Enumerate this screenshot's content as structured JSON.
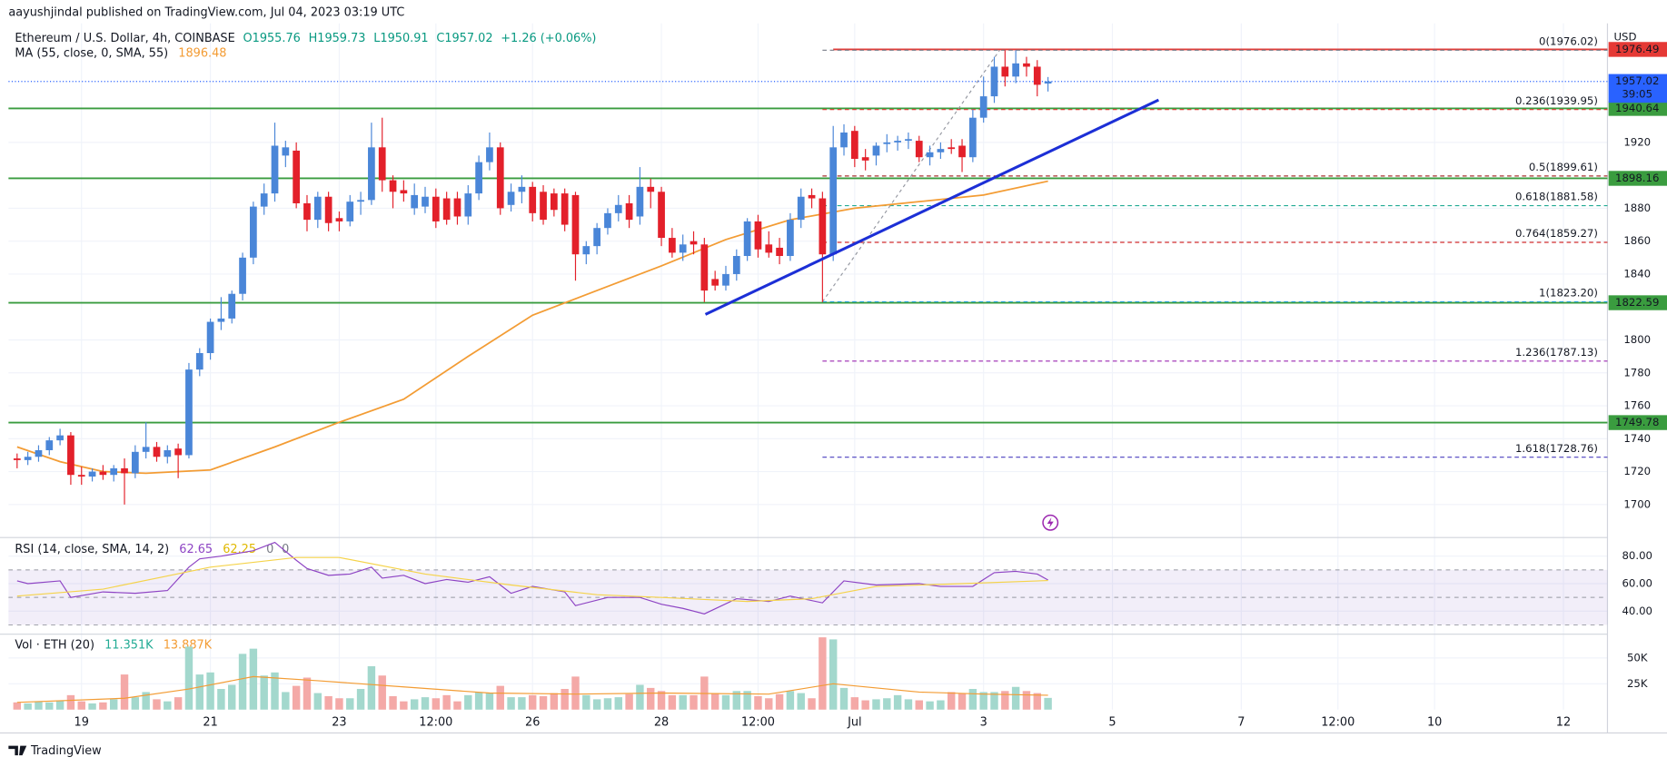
{
  "header": {
    "publisher": "aayushjindal published on TradingView.com, Jul 04, 2023 03:19 UTC",
    "brand": "TradingView",
    "currency": "USD"
  },
  "chart_data": [
    {
      "type": "candlestick",
      "title": "Ethereum / U.S. Dollar, 4h, COINBASE",
      "legend_values": [
        "O1955.76",
        "H1959.73",
        "L1950.91",
        "C1957.02",
        "+1.26 (+0.06%)"
      ],
      "up_color": "#4a86d8",
      "down_color": "#e3202a",
      "grid": true,
      "xlim": [
        -0.8,
        148.1
      ],
      "xticks": [
        {
          "value": 6,
          "label": "19"
        },
        {
          "value": 18,
          "label": "21"
        },
        {
          "value": 30,
          "label": "23"
        },
        {
          "value": 39,
          "label": "12:00"
        },
        {
          "value": 48,
          "label": "26"
        },
        {
          "value": 60,
          "label": "28"
        },
        {
          "value": 69,
          "label": "12:00"
        },
        {
          "value": 78,
          "label": "Jul"
        },
        {
          "value": 90,
          "label": "3"
        },
        {
          "value": 102,
          "label": "5"
        },
        {
          "value": 114,
          "label": "7"
        },
        {
          "value": 123,
          "label": "12:00"
        },
        {
          "value": 132,
          "label": "10"
        },
        {
          "value": 144,
          "label": "12"
        }
      ],
      "ylim": [
        1680.6,
        1992.3
      ],
      "yticks": [
        1700,
        1720,
        1740,
        1760,
        1780,
        1800,
        1840,
        1860,
        1880,
        1920
      ],
      "open": [
        1728,
        1727,
        1729,
        1733,
        1739,
        1742,
        1718,
        1717,
        1720,
        1718,
        1722,
        1719,
        1732,
        1735,
        1729,
        1734,
        1730,
        1782,
        1792,
        1811,
        1813,
        1828,
        1850,
        1881,
        1889,
        1912,
        1915,
        1883,
        1873,
        1887,
        1874,
        1872,
        1884,
        1885,
        1917,
        1897,
        1891,
        1880,
        1881,
        1887,
        1886,
        1886,
        1875,
        1889,
        1908,
        1917,
        1882,
        1890,
        1893,
        1890,
        1889,
        1889,
        1888,
        1852,
        1857,
        1868,
        1877,
        1883,
        1875,
        1893,
        1890,
        1862,
        1853,
        1860,
        1858,
        1837,
        1833,
        1840,
        1851,
        1872,
        1858,
        1856,
        1851,
        1873,
        1888,
        1886,
        1852,
        1917,
        1927,
        1911,
        1912,
        1919,
        1920,
        1921,
        1921,
        1911,
        1914,
        1917,
        1918,
        1911,
        1935,
        1948,
        1966,
        1960,
        1968,
        1966,
        1955.76
      ],
      "high": [
        1731,
        1732,
        1736,
        1741,
        1746,
        1744,
        1723,
        1722,
        1724,
        1724,
        1728,
        1736,
        1750,
        1738,
        1736,
        1737,
        1786,
        1795,
        1813,
        1826,
        1830,
        1853,
        1884,
        1895,
        1932,
        1921,
        1920,
        1888,
        1890,
        1890,
        1878,
        1888,
        1890,
        1932,
        1935,
        1900,
        1897,
        1895,
        1893,
        1892,
        1890,
        1890,
        1894,
        1912,
        1926,
        1920,
        1895,
        1900,
        1896,
        1894,
        1892,
        1892,
        1890,
        1860,
        1871,
        1880,
        1888,
        1888,
        1905,
        1898,
        1893,
        1868,
        1864,
        1866,
        1862,
        1842,
        1845,
        1855,
        1874,
        1876,
        1866,
        1862,
        1877,
        1892,
        1892,
        1890,
        1930,
        1931,
        1930,
        1916,
        1920,
        1925,
        1924,
        1926,
        1924,
        1918,
        1920,
        1922,
        1922,
        1940,
        1960,
        1972,
        1976,
        1976,
        1972,
        1970,
        1959.73
      ],
      "low": [
        1722,
        1724,
        1726,
        1730,
        1736,
        1712,
        1712,
        1714,
        1715,
        1714,
        1700,
        1716,
        1728,
        1726,
        1725,
        1716,
        1728,
        1778,
        1788,
        1806,
        1810,
        1824,
        1846,
        1876,
        1884,
        1905,
        1880,
        1866,
        1868,
        1866,
        1866,
        1869,
        1876,
        1882,
        1890,
        1880,
        1884,
        1876,
        1877,
        1868,
        1870,
        1870,
        1870,
        1885,
        1903,
        1876,
        1878,
        1883,
        1872,
        1870,
        1875,
        1866,
        1836,
        1846,
        1852,
        1864,
        1872,
        1868,
        1870,
        1880,
        1857,
        1850,
        1848,
        1852,
        1823,
        1830,
        1830,
        1836,
        1848,
        1850,
        1850,
        1846,
        1848,
        1868,
        1880,
        1823,
        1848,
        1912,
        1905,
        1903,
        1906,
        1914,
        1915,
        1916,
        1908,
        1906,
        1910,
        1913,
        1902,
        1908,
        1932,
        1944,
        1954,
        1956,
        1960,
        1948,
        1950.91
      ],
      "close": [
        1727,
        1729,
        1733,
        1739,
        1742,
        1718,
        1717,
        1720,
        1718,
        1722,
        1719,
        1732,
        1735,
        1729,
        1733,
        1730,
        1782,
        1792,
        1811,
        1813,
        1828,
        1850,
        1881,
        1889,
        1918,
        1917,
        1883,
        1873,
        1887,
        1871,
        1872,
        1884,
        1885,
        1917,
        1897,
        1890,
        1889,
        1888,
        1887,
        1872,
        1873,
        1875,
        1889,
        1908,
        1917,
        1880,
        1890,
        1893,
        1877,
        1873,
        1879,
        1870,
        1852,
        1857,
        1868,
        1877,
        1882,
        1873,
        1893,
        1890,
        1862,
        1853,
        1858,
        1858,
        1830,
        1833,
        1840,
        1851,
        1872,
        1855,
        1853,
        1851,
        1873,
        1887,
        1886,
        1852,
        1917,
        1926,
        1910,
        1909,
        1918,
        1920,
        1921,
        1922,
        1911,
        1914,
        1916,
        1916,
        1911,
        1935,
        1948,
        1966,
        1960,
        1968,
        1966,
        1955,
        1957.02
      ],
      "series": [
        {
          "name": "MA (55, close, 0, SMA, 55)",
          "color": "#f39c34",
          "x": [
            0,
            4,
            8,
            12,
            18,
            24,
            30,
            36,
            42,
            48,
            54,
            60,
            66,
            72,
            78,
            84,
            90,
            96
          ],
          "values": [
            1735,
            1726,
            1720,
            1719,
            1721,
            1735,
            1750,
            1764,
            1790,
            1815,
            1830,
            1845,
            1861,
            1873,
            1880,
            1884,
            1888,
            1896.48
          ]
        }
      ],
      "levels": [
        {
          "value": 1976.49,
          "color": "#e53935",
          "x_start": 76
        },
        {
          "value": 1940.64,
          "color": "#3a9c3f"
        },
        {
          "value": 1898.16,
          "color": "#3a9c3f"
        },
        {
          "value": 1822.59,
          "color": "#3a9c3f"
        },
        {
          "value": 1749.78,
          "color": "#3a9c3f"
        }
      ],
      "last_price": {
        "value": 1957.02,
        "countdown": "39:05",
        "color": "#2962ff"
      },
      "fib_x": [
        75,
        91.5
      ],
      "fib": [
        {
          "label": "0(1976.02)",
          "value": 1976.02,
          "color": "#787b86"
        },
        {
          "label": "0.236(1939.95)",
          "value": 1939.95,
          "color": "#e53935"
        },
        {
          "label": "0.5(1899.61)",
          "value": 1899.61,
          "color": "#a83232"
        },
        {
          "label": "0.618(1881.58)",
          "value": 1881.58,
          "color": "#22ab94"
        },
        {
          "label": "0.764(1859.27)",
          "value": 1859.27,
          "color": "#d32f2f"
        },
        {
          "label": "1(1823.20)",
          "value": 1823.2,
          "color": "#29a3d6"
        },
        {
          "label": "1.236(1787.13)",
          "value": 1787.13,
          "color": "#9c27b0"
        },
        {
          "label": "1.618(1728.76)",
          "value": 1728.76,
          "color": "#4a3fbf"
        }
      ],
      "trendline": {
        "x": [
          64.1,
          106.3
        ],
        "y": [
          1815.5,
          1945.8
        ],
        "color": "#1c2fd6"
      }
    },
    {
      "type": "line",
      "title": "RSI (14, close, SMA, 14, 2)",
      "legend_extra": [
        "0",
        "0"
      ],
      "ylim": [
        24,
        92
      ],
      "yticks": [
        {
          "value": 40,
          "label": "40.00"
        },
        {
          "value": 60,
          "label": "60.00"
        },
        {
          "value": 80,
          "label": "80.00"
        }
      ],
      "band": [
        30,
        70
      ],
      "midline": 50,
      "band_color": "#7e57c2",
      "series": [
        {
          "color": "#8e44c4",
          "x": [
            0,
            1,
            4,
            5,
            8,
            11,
            14,
            16,
            17,
            19,
            22,
            24,
            26,
            27,
            29,
            31,
            33,
            34,
            36,
            38,
            40,
            42,
            44,
            46,
            48,
            51,
            52,
            55,
            58,
            60,
            62,
            64,
            67,
            70,
            72,
            75,
            77,
            80,
            84,
            86,
            89,
            91,
            93,
            95,
            96
          ],
          "values": [
            62,
            60,
            62,
            50,
            54,
            53,
            55,
            72,
            78,
            80,
            84,
            90,
            77,
            71,
            66,
            67,
            72,
            64,
            66,
            60,
            63,
            61,
            65,
            53,
            58,
            54,
            44,
            50,
            50,
            45,
            42,
            38,
            49,
            47,
            51,
            46,
            62,
            59,
            60,
            58,
            58,
            68,
            69,
            67,
            62.65
          ]
        },
        {
          "color": "#f5d34a",
          "x": [
            0,
            8,
            18,
            26,
            30,
            38,
            46,
            54,
            60,
            68,
            74,
            80,
            88,
            96
          ],
          "values": [
            51,
            56,
            72,
            79,
            79,
            67,
            59,
            52,
            50,
            47,
            49,
            58,
            60,
            62.25
          ]
        }
      ]
    },
    {
      "type": "bar",
      "title": "Vol · ETH (20)",
      "legend_values": [
        "11.351K",
        "13.887K"
      ],
      "up_color": "#a3d8cd",
      "down_color": "#f4a9a7",
      "ylim": [
        0,
        72000
      ],
      "yticks": [
        {
          "value": 25000,
          "label": "25K"
        },
        {
          "value": 50000,
          "label": "50K"
        }
      ],
      "values": [
        7000,
        6000,
        8000,
        7000,
        9000,
        14000,
        8000,
        6000,
        7000,
        10000,
        34000,
        12000,
        17000,
        10000,
        8000,
        12000,
        61000,
        34000,
        36000,
        20000,
        24000,
        54000,
        59000,
        33000,
        36000,
        17000,
        23000,
        31000,
        16000,
        13000,
        11000,
        11000,
        20000,
        42000,
        33000,
        13000,
        8000,
        10000,
        12000,
        11000,
        14000,
        8000,
        14000,
        17000,
        16000,
        23000,
        12000,
        12000,
        14000,
        13000,
        16000,
        20000,
        32000,
        14000,
        10000,
        11000,
        12000,
        15000,
        24000,
        21000,
        18000,
        14000,
        14000,
        14000,
        32000,
        16000,
        14000,
        18000,
        18000,
        13000,
        11000,
        15000,
        18000,
        16000,
        11000,
        70000,
        68000,
        21000,
        12000,
        9000,
        10000,
        11000,
        14000,
        10000,
        9000,
        8000,
        9000,
        17000,
        16000,
        20000,
        17000,
        17000,
        18000,
        22000,
        18000,
        16000,
        11351
      ],
      "series": [
        {
          "color": "#f39c34",
          "x": [
            0,
            10,
            16,
            22,
            28,
            36,
            44,
            52,
            60,
            70,
            76,
            84,
            90,
            96
          ],
          "values": [
            7000,
            11000,
            20000,
            32000,
            28000,
            22000,
            16000,
            15000,
            16000,
            15000,
            25000,
            17000,
            15000,
            13887
          ]
        }
      ]
    }
  ]
}
